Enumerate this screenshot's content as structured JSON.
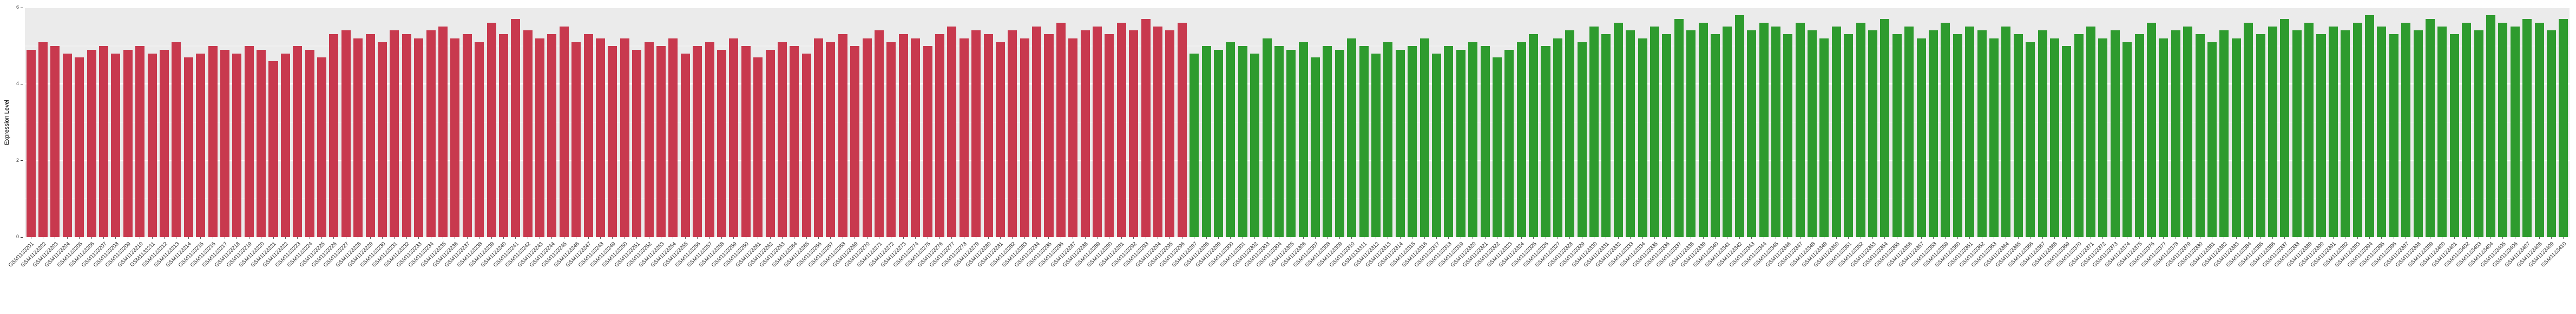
{
  "figure": {
    "background": "#ffffff",
    "panel_background": "#EBEBEB",
    "gridline_color": "#ffffff",
    "bar_color_left_group": "#C8394E",
    "bar_color_right_group": "#2E9B2E"
  },
  "chart_data": {
    "type": "bar",
    "title": "",
    "xlabel": "",
    "ylabel": "Expression Level",
    "ylim": [
      0,
      6
    ],
    "yticks": [
      0,
      2,
      4,
      6
    ],
    "grid": true,
    "legend_position": "none",
    "x_tick_rotation_degrees": 45,
    "series": [
      {
        "name": "red-group",
        "color": "#C8394E",
        "categories": [
          "GSM1133201",
          "GSM1133202",
          "GSM1133203",
          "GSM1133204",
          "GSM1133205",
          "GSM1133206",
          "GSM1133207",
          "GSM1133208",
          "GSM1133209",
          "GSM1133210",
          "GSM1133211",
          "GSM1133212",
          "GSM1133213",
          "GSM1133214",
          "GSM1133215",
          "GSM1133216",
          "GSM1133217",
          "GSM1133218",
          "GSM1133219",
          "GSM1133220",
          "GSM1133221",
          "GSM1133222",
          "GSM1133223",
          "GSM1133224",
          "GSM1133225",
          "GSM1133226",
          "GSM1133227",
          "GSM1133228",
          "GSM1133229",
          "GSM1133230",
          "GSM1133231",
          "GSM1133232",
          "GSM1133233",
          "GSM1133234",
          "GSM1133235",
          "GSM1133236",
          "GSM1133237",
          "GSM1133238",
          "GSM1133239",
          "GSM1133240",
          "GSM1133241",
          "GSM1133242",
          "GSM1133243",
          "GSM1133244",
          "GSM1133245",
          "GSM1133246",
          "GSM1133247",
          "GSM1133248",
          "GSM1133249",
          "GSM1133250",
          "GSM1133251",
          "GSM1133252",
          "GSM1133253",
          "GSM1133254",
          "GSM1133255",
          "GSM1133256",
          "GSM1133257",
          "GSM1133258",
          "GSM1133259",
          "GSM1133260",
          "GSM1133261",
          "GSM1133262",
          "GSM1133263",
          "GSM1133264",
          "GSM1133265",
          "GSM1133266",
          "GSM1133267",
          "GSM1133268",
          "GSM1133269",
          "GSM1133270",
          "GSM1133271",
          "GSM1133272",
          "GSM1133273",
          "GSM1133274",
          "GSM1133275",
          "GSM1133276",
          "GSM1133277",
          "GSM1133278",
          "GSM1133279",
          "GSM1133280",
          "GSM1133281",
          "GSM1133282",
          "GSM1133283",
          "GSM1133284",
          "GSM1133285",
          "GSM1133286",
          "GSM1133287",
          "GSM1133288",
          "GSM1133289",
          "GSM1133290",
          "GSM1133291",
          "GSM1133292",
          "GSM1133293",
          "GSM1133294",
          "GSM1133295",
          "GSM1133296"
        ],
        "values": [
          4.9,
          5.1,
          5.0,
          4.8,
          4.7,
          4.9,
          5.0,
          4.8,
          4.9,
          5.0,
          4.8,
          4.9,
          5.1,
          4.7,
          4.8,
          5.0,
          4.9,
          4.8,
          5.0,
          4.9,
          4.6,
          4.8,
          5.0,
          4.9,
          4.7,
          5.3,
          5.4,
          5.2,
          5.3,
          5.1,
          5.4,
          5.3,
          5.2,
          5.4,
          5.5,
          5.2,
          5.3,
          5.1,
          5.6,
          5.3,
          5.7,
          5.4,
          5.2,
          5.3,
          5.5,
          5.1,
          5.3,
          5.2,
          5.0,
          5.2,
          4.9,
          5.1,
          5.0,
          5.2,
          4.8,
          5.0,
          5.1,
          4.9,
          5.2,
          5.0,
          4.7,
          4.9,
          5.1,
          5.0,
          4.8,
          5.2,
          5.1,
          5.3,
          5.0,
          5.2,
          5.4,
          5.1,
          5.3,
          5.2,
          5.0,
          5.3,
          5.5,
          5.2,
          5.4,
          5.3,
          5.1,
          5.4,
          5.2,
          5.5,
          5.3,
          5.6,
          5.2,
          5.4,
          5.5,
          5.3,
          5.6,
          5.4,
          5.7,
          5.5,
          5.4,
          5.6
        ]
      },
      {
        "name": "green-group",
        "color": "#2E9B2E",
        "categories": [
          "GSM1133297",
          "GSM1133298",
          "GSM1133299",
          "GSM1133300",
          "GSM1133301",
          "GSM1133302",
          "GSM1133303",
          "GSM1133304",
          "GSM1133305",
          "GSM1133306",
          "GSM1133307",
          "GSM1133308",
          "GSM1133309",
          "GSM1133310",
          "GSM1133311",
          "GSM1133312",
          "GSM1133313",
          "GSM1133314",
          "GSM1133315",
          "GSM1133316",
          "GSM1133317",
          "GSM1133318",
          "GSM1133319",
          "GSM1133320",
          "GSM1133321",
          "GSM1133322",
          "GSM1133323",
          "GSM1133324",
          "GSM1133325",
          "GSM1133326",
          "GSM1133327",
          "GSM1133328",
          "GSM1133329",
          "GSM1133330",
          "GSM1133331",
          "GSM1133332",
          "GSM1133333",
          "GSM1133334",
          "GSM1133335",
          "GSM1133336",
          "GSM1133337",
          "GSM1133338",
          "GSM1133339",
          "GSM1133340",
          "GSM1133341",
          "GSM1133342",
          "GSM1133343",
          "GSM1133344",
          "GSM1133345",
          "GSM1133346",
          "GSM1133347",
          "GSM1133348",
          "GSM1133349",
          "GSM1133350",
          "GSM1133351",
          "GSM1133352",
          "GSM1133353",
          "GSM1133354",
          "GSM1133355",
          "GSM1133356",
          "GSM1133357",
          "GSM1133358",
          "GSM1133359",
          "GSM1133360",
          "GSM1133361",
          "GSM1133362",
          "GSM1133363",
          "GSM1133364",
          "GSM1133365",
          "GSM1133366",
          "GSM1133367",
          "GSM1133368",
          "GSM1133369",
          "GSM1133370",
          "GSM1133371",
          "GSM1133372",
          "GSM1133373",
          "GSM1133374",
          "GSM1133375",
          "GSM1133376",
          "GSM1133377",
          "GSM1133378",
          "GSM1133379",
          "GSM1133380",
          "GSM1133381",
          "GSM1133382",
          "GSM1133383",
          "GSM1133384",
          "GSM1133385",
          "GSM1133386",
          "GSM1133387",
          "GSM1133388",
          "GSM1133389",
          "GSM1133390",
          "GSM1133391",
          "GSM1133392",
          "GSM1133393",
          "GSM1133394",
          "GSM1133395",
          "GSM1133396",
          "GSM1133397",
          "GSM1133398",
          "GSM1133399",
          "GSM1133400",
          "GSM1133401",
          "GSM1133402",
          "GSM1133403",
          "GSM1133404",
          "GSM1133405",
          "GSM1133406",
          "GSM1133407",
          "GSM1133408",
          "GSM1133409",
          "GSM1133410"
        ],
        "values": [
          4.8,
          5.0,
          4.9,
          5.1,
          5.0,
          4.8,
          5.2,
          5.0,
          4.9,
          5.1,
          4.7,
          5.0,
          4.9,
          5.2,
          5.0,
          4.8,
          5.1,
          4.9,
          5.0,
          5.2,
          4.8,
          5.0,
          4.9,
          5.1,
          5.0,
          4.7,
          4.9,
          5.1,
          5.3,
          5.0,
          5.2,
          5.4,
          5.1,
          5.5,
          5.3,
          5.6,
          5.4,
          5.2,
          5.5,
          5.3,
          5.7,
          5.4,
          5.6,
          5.3,
          5.5,
          5.8,
          5.4,
          5.6,
          5.5,
          5.3,
          5.6,
          5.4,
          5.2,
          5.5,
          5.3,
          5.6,
          5.4,
          5.7,
          5.3,
          5.5,
          5.2,
          5.4,
          5.6,
          5.3,
          5.5,
          5.4,
          5.2,
          5.5,
          5.3,
          5.1,
          5.4,
          5.2,
          5.0,
          5.3,
          5.5,
          5.2,
          5.4,
          5.1,
          5.3,
          5.6,
          5.2,
          5.4,
          5.5,
          5.3,
          5.1,
          5.4,
          5.2,
          5.6,
          5.3,
          5.5,
          5.7,
          5.4,
          5.6,
          5.3,
          5.5,
          5.4,
          5.6,
          5.8,
          5.5,
          5.3,
          5.6,
          5.4,
          5.7,
          5.5,
          5.3,
          5.6,
          5.4,
          5.8,
          5.6,
          5.5,
          5.7,
          5.6,
          5.4,
          5.7
        ]
      }
    ]
  }
}
